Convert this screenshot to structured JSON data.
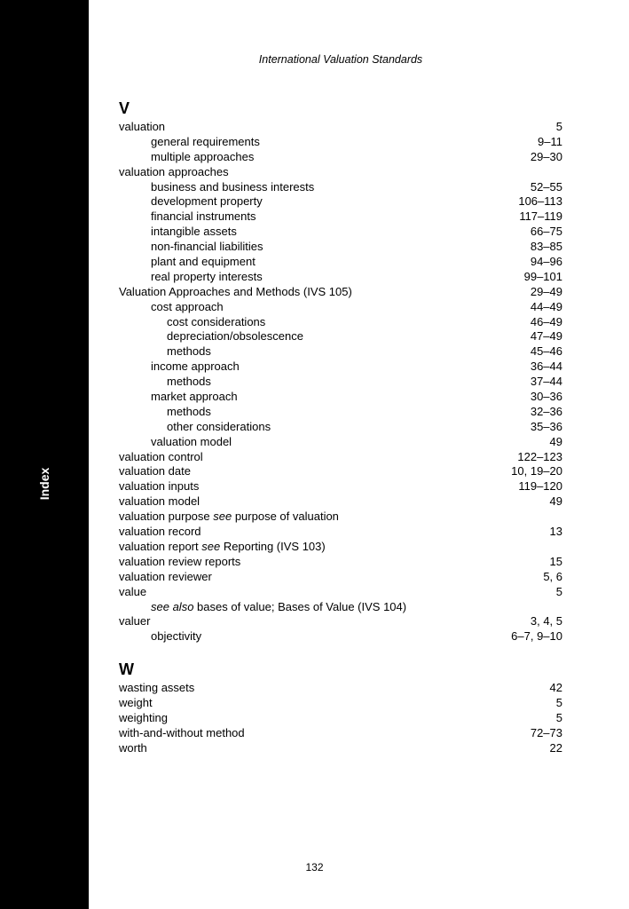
{
  "header": "International Valuation Standards",
  "sidebar_label": "Index",
  "page_number": "132",
  "sections": [
    {
      "letter": "V",
      "entries": [
        {
          "term": "valuation",
          "pages": "5",
          "indent": 0
        },
        {
          "term": "general requirements",
          "pages": "9–11",
          "indent": 1
        },
        {
          "term": "multiple approaches",
          "pages": "29–30",
          "indent": 1
        },
        {
          "term": "valuation approaches",
          "pages": "",
          "indent": 0
        },
        {
          "term": "business and business interests",
          "pages": "52–55",
          "indent": 1
        },
        {
          "term": "development property",
          "pages": "106–113",
          "indent": 1
        },
        {
          "term": "financial instruments",
          "pages": "117–119",
          "indent": 1
        },
        {
          "term": "intangible assets",
          "pages": "66–75",
          "indent": 1
        },
        {
          "term": "non-financial liabilities",
          "pages": "83–85",
          "indent": 1
        },
        {
          "term": "plant and equipment",
          "pages": "94–96",
          "indent": 1
        },
        {
          "term": "real property interests",
          "pages": "99–101",
          "indent": 1
        },
        {
          "term": "Valuation Approaches and Methods (IVS 105)",
          "pages": "29–49",
          "indent": 0
        },
        {
          "term": "cost approach",
          "pages": "44–49",
          "indent": 1
        },
        {
          "term": "cost considerations",
          "pages": "46–49",
          "indent": 2
        },
        {
          "term": "depreciation/obsolescence",
          "pages": "47–49",
          "indent": 2
        },
        {
          "term": "methods",
          "pages": "45–46",
          "indent": 2
        },
        {
          "term": "income approach",
          "pages": "36–44",
          "indent": 1
        },
        {
          "term": "methods",
          "pages": "37–44",
          "indent": 2
        },
        {
          "term": "market approach",
          "pages": "30–36",
          "indent": 1
        },
        {
          "term": "methods",
          "pages": "32–36",
          "indent": 2
        },
        {
          "term": "other considerations",
          "pages": "35–36",
          "indent": 2
        },
        {
          "term": "valuation model",
          "pages": "49",
          "indent": 1
        },
        {
          "term": "valuation control",
          "pages": "122–123",
          "indent": 0
        },
        {
          "term": "valuation date",
          "pages": "10, 19–20",
          "indent": 0
        },
        {
          "term": "valuation inputs",
          "pages": "119–120",
          "indent": 0
        },
        {
          "term": "valuation model",
          "pages": "49",
          "indent": 0
        },
        {
          "term_html": "valuation purpose <span class=\"italic\">see</span> purpose of valuation",
          "pages": "",
          "indent": 0
        },
        {
          "term": "valuation record",
          "pages": "13",
          "indent": 0
        },
        {
          "term_html": "valuation report <span class=\"italic\">see</span> Reporting (IVS 103)",
          "pages": "",
          "indent": 0
        },
        {
          "term": "valuation review reports",
          "pages": "15",
          "indent": 0
        },
        {
          "term": "valuation reviewer",
          "pages": "5, 6",
          "indent": 0
        },
        {
          "term": "value",
          "pages": "5",
          "indent": 0
        },
        {
          "term_html": "<span class=\"italic\">see also</span> bases of value; Bases of Value (IVS 104)",
          "pages": "",
          "indent": 1
        },
        {
          "term": "valuer",
          "pages": "3, 4, 5",
          "indent": 0
        },
        {
          "term": "objectivity",
          "pages": "6–7, 9–10",
          "indent": 1
        }
      ]
    },
    {
      "letter": "W",
      "entries": [
        {
          "term": "wasting assets",
          "pages": "42",
          "indent": 0
        },
        {
          "term": "weight",
          "pages": "5",
          "indent": 0
        },
        {
          "term": "weighting",
          "pages": "5",
          "indent": 0
        },
        {
          "term": "with-and-without method",
          "pages": "72–73",
          "indent": 0
        },
        {
          "term": "worth",
          "pages": "22",
          "indent": 0
        }
      ]
    }
  ]
}
